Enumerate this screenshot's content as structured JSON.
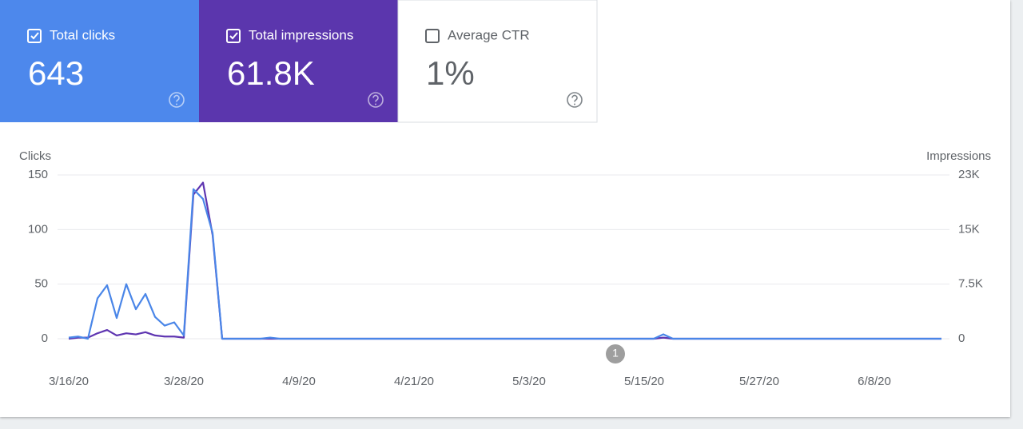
{
  "cards": [
    {
      "label": "Total clicks",
      "value": "643",
      "checked": true,
      "color": "#4d88ec"
    },
    {
      "label": "Total impressions",
      "value": "61.8K",
      "checked": true,
      "color": "#5b36ad"
    },
    {
      "label": "Average CTR",
      "value": "1%",
      "checked": false,
      "color": "#ffffff"
    }
  ],
  "chart_data": {
    "type": "line",
    "y_label": "Clicks",
    "y2_label": "Impressions",
    "categories": [
      "3/16/20",
      null,
      null,
      null,
      null,
      null,
      null,
      null,
      null,
      null,
      null,
      null,
      "3/28/20",
      null,
      null,
      null,
      null,
      null,
      null,
      null,
      null,
      null,
      null,
      null,
      "4/9/20",
      null,
      null,
      null,
      null,
      null,
      null,
      null,
      null,
      null,
      null,
      null,
      "4/21/20",
      null,
      null,
      null,
      null,
      null,
      null,
      null,
      null,
      null,
      null,
      null,
      "5/3/20",
      null,
      null,
      null,
      null,
      null,
      null,
      null,
      null,
      null,
      null,
      null,
      "5/15/20",
      null,
      null,
      null,
      null,
      null,
      null,
      null,
      null,
      null,
      null,
      null,
      "5/27/20",
      null,
      null,
      null,
      null,
      null,
      null,
      null,
      null,
      null,
      null,
      null,
      "6/8/20",
      null,
      null,
      null,
      null,
      null,
      null,
      null
    ],
    "series": [
      {
        "color": "#4a86e8",
        "values": [
          1,
          2,
          0,
          37,
          49,
          19,
          50,
          27,
          41,
          20,
          12,
          15,
          3,
          137,
          128,
          97,
          0,
          0,
          0,
          0,
          0,
          1,
          0,
          0,
          0,
          0,
          0,
          0,
          0,
          0,
          0,
          0,
          0,
          0,
          0,
          0,
          0,
          0,
          0,
          0,
          0,
          0,
          0,
          0,
          0,
          0,
          0,
          0,
          0,
          0,
          0,
          0,
          0,
          0,
          0,
          0,
          0,
          0,
          0,
          0,
          0,
          0,
          4,
          0,
          0,
          0,
          0,
          0,
          0,
          0,
          0,
          0,
          0,
          0,
          0,
          0,
          0,
          0,
          0,
          0,
          0,
          0,
          0,
          0,
          0,
          0,
          0,
          0,
          0,
          0,
          0,
          0
        ]
      },
      {
        "color": "#5e35b1",
        "axis": "y2",
        "values": [
          0,
          150,
          150,
          750,
          1200,
          450,
          750,
          600,
          900,
          450,
          300,
          300,
          150,
          19800,
          21450,
          14250,
          0,
          0,
          0,
          0,
          0,
          0,
          0,
          0,
          0,
          0,
          0,
          0,
          0,
          0,
          0,
          0,
          0,
          0,
          0,
          0,
          0,
          0,
          0,
          0,
          0,
          0,
          0,
          0,
          0,
          0,
          0,
          0,
          0,
          0,
          0,
          0,
          0,
          0,
          0,
          0,
          0,
          0,
          0,
          0,
          0,
          0,
          150,
          0,
          0,
          0,
          0,
          0,
          0,
          0,
          0,
          0,
          0,
          0,
          0,
          0,
          0,
          0,
          0,
          0,
          0,
          0,
          0,
          0,
          0,
          0,
          0,
          0,
          0,
          0,
          0,
          0
        ]
      }
    ],
    "ylim": [
      0,
      150
    ],
    "yticks": [
      0,
      50,
      100,
      150
    ],
    "y2lim": [
      0,
      22500
    ],
    "y2ticks": [
      0,
      {
        "value": 7500,
        "label": "7.5K"
      },
      {
        "value": 15000,
        "label": "15K"
      },
      {
        "value": 22500,
        "label": "23K"
      }
    ],
    "grid": true,
    "annotation": {
      "text": "1",
      "index": 57
    }
  }
}
